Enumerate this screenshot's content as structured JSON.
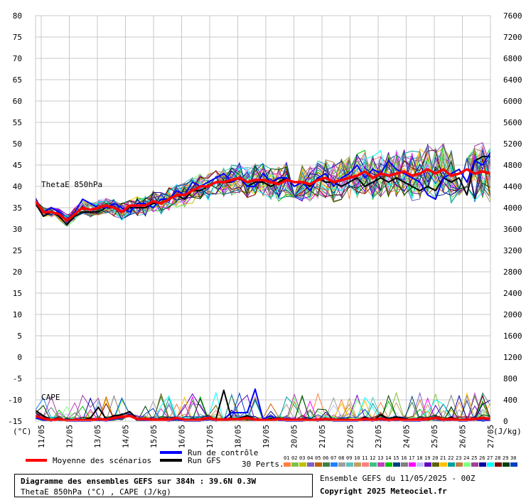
{
  "chart_data": {
    "type": "line",
    "title": "Diagramme des ensembles GEFS sur 384h : 39.6N 0.3W",
    "subtitle": "ThetaE 850hPa (°C) , CAPE (J/kg)",
    "left_axis": {
      "unit_label": "(°C)",
      "ticks": [
        80,
        75,
        70,
        65,
        60,
        55,
        50,
        45,
        40,
        35,
        30,
        25,
        20,
        15,
        10,
        5,
        0,
        -5,
        -10,
        -15
      ],
      "ylim": [
        -15,
        80
      ]
    },
    "right_axis": {
      "unit_label": "(J/kg)",
      "ticks": [
        7600,
        7200,
        6800,
        6400,
        6000,
        5600,
        5200,
        4800,
        4400,
        4000,
        3600,
        3200,
        2800,
        2400,
        2000,
        1600,
        1200,
        800,
        400,
        0
      ],
      "ylim": [
        0,
        7600
      ]
    },
    "x_labels": [
      "11/05",
      "12/05",
      "13/05",
      "14/05",
      "15/05",
      "16/05",
      "17/05",
      "18/05",
      "19/05",
      "20/05",
      "21/05",
      "22/05",
      "23/05",
      "24/05",
      "25/05",
      "26/05",
      "27/05"
    ],
    "panel_labels": {
      "thetae": "ThetaE 850hPa",
      "cape": "CAPE"
    },
    "grid": true,
    "series": [
      {
        "name": "Moyenne des scénarios",
        "color": "#ff0000",
        "role": "mean",
        "thetae": [
          36.5,
          34,
          34,
          33.5,
          32,
          33.5,
          35,
          34.5,
          35,
          35.5,
          35,
          34,
          35.5,
          35.5,
          35.5,
          36.5,
          36,
          37,
          38,
          38,
          39,
          40,
          40,
          41,
          41,
          41.5,
          42,
          41,
          41.5,
          41.5,
          41,
          40.5,
          41.5,
          41,
          41,
          40.5,
          41.5,
          42,
          41,
          41.5,
          42,
          42.5,
          43.5,
          42,
          43,
          42.5,
          43,
          43.5,
          42.5,
          43,
          44,
          43,
          44,
          42.5,
          43,
          44,
          43,
          43.5,
          43
        ],
        "cape": [
          100,
          50,
          20,
          40,
          10,
          20,
          20,
          20,
          40,
          30,
          60,
          80,
          100,
          40,
          40,
          30,
          30,
          30,
          60,
          30,
          20,
          30,
          60,
          30,
          30,
          40,
          40,
          60,
          30,
          20,
          20,
          40,
          30,
          20,
          30,
          20,
          30,
          40,
          30,
          20,
          20,
          20,
          40,
          20,
          50,
          20,
          40,
          20,
          30,
          30,
          40,
          60,
          30,
          40,
          20,
          30,
          40,
          60,
          40
        ]
      },
      {
        "name": "Run de contrôle",
        "color": "#0000ff",
        "role": "control",
        "thetae": [
          37,
          34,
          35,
          34,
          32,
          34,
          37,
          36,
          35,
          35,
          36,
          35,
          34,
          36,
          36,
          35,
          37,
          37,
          39,
          38,
          41,
          40,
          41,
          42,
          43,
          41,
          42,
          40,
          40,
          43,
          41,
          42,
          42,
          40,
          41,
          39,
          42,
          43,
          40,
          42,
          43,
          45,
          42,
          44,
          43,
          46,
          44,
          43,
          42,
          41,
          38,
          37,
          42,
          43,
          44,
          41,
          46,
          45,
          48
        ],
        "cape": [
          60,
          20,
          0,
          40,
          0,
          0,
          0,
          0,
          20,
          0,
          40,
          60,
          120,
          40,
          20,
          20,
          20,
          0,
          40,
          0,
          0,
          0,
          60,
          0,
          40,
          160,
          160,
          160,
          600,
          40,
          100,
          20,
          0,
          0,
          0,
          20,
          0,
          60,
          0,
          0,
          0,
          0,
          20,
          0,
          40,
          0,
          20,
          0,
          0,
          0,
          40,
          80,
          0,
          40,
          0,
          0,
          40,
          0,
          20
        ]
      },
      {
        "name": "Run GFS",
        "color": "#000000",
        "role": "gfs",
        "thetae": [
          36,
          33,
          34,
          33,
          31,
          33,
          34,
          34,
          34,
          35,
          35,
          34,
          35,
          35,
          35,
          36,
          36,
          37,
          38,
          37,
          39,
          39,
          40,
          41,
          41,
          41,
          42,
          40,
          41,
          41,
          40,
          41,
          42,
          40,
          41,
          40,
          42,
          41,
          41,
          40,
          41,
          42,
          40,
          41,
          42,
          41,
          42,
          41,
          40,
          39,
          40,
          39,
          42,
          41,
          42,
          38,
          46,
          47,
          47
        ],
        "cape": [
          200,
          100,
          20,
          60,
          0,
          0,
          20,
          60,
          260,
          40,
          100,
          120,
          180,
          40,
          20,
          40,
          40,
          0,
          60,
          0,
          0,
          0,
          60,
          40,
          580,
          40,
          60,
          100,
          40,
          20,
          40,
          60,
          20,
          0,
          20,
          40,
          0,
          40,
          0,
          0,
          20,
          0,
          80,
          0,
          120,
          40,
          80,
          40,
          20,
          0,
          40,
          60,
          20,
          80,
          0,
          20,
          40,
          0,
          20
        ]
      }
    ],
    "members_count": 30,
    "member_colors": [
      "#ff8040",
      "#80c040",
      "#c0c000",
      "#8060c0",
      "#c06000",
      "#408040",
      "#2080ff",
      "#a0a0a0",
      "#60c0c0",
      "#c0a060",
      "#ff8080",
      "#40c080",
      "#c040c0",
      "#00c000",
      "#004080",
      "#808080",
      "#ff00ff",
      "#c0c0ff",
      "#6000c0",
      "#606000",
      "#ffc000",
      "#00a0a0",
      "#c08040",
      "#80ff80",
      "#a040a0",
      "#0000a0",
      "#00ffff",
      "#800000",
      "#004000",
      "#0040c0"
    ],
    "member_labels": [
      "01",
      "02",
      "03",
      "04",
      "05",
      "06",
      "07",
      "08",
      "09",
      "10",
      "11",
      "12",
      "13",
      "14",
      "15",
      "16",
      "17",
      "18",
      "19",
      "20",
      "21",
      "22",
      "23",
      "24",
      "25",
      "26",
      "27",
      "28",
      "29",
      "30"
    ]
  },
  "legend": {
    "mean": "Moyenne des scénarios",
    "control": "Run de contrôle",
    "gfs": "Run GFS",
    "perts": "30 Perts."
  },
  "footer": {
    "title": "Diagramme des ensembles GEFS sur 384h : 39.6N 0.3W",
    "subtitle": "ThetaE 850hPa (°C) , CAPE (J/kg)",
    "ensemble": "Ensemble GEFS du 11/05/2025 - 00Z",
    "copyright": "Copyright 2025 Meteociel.fr"
  }
}
